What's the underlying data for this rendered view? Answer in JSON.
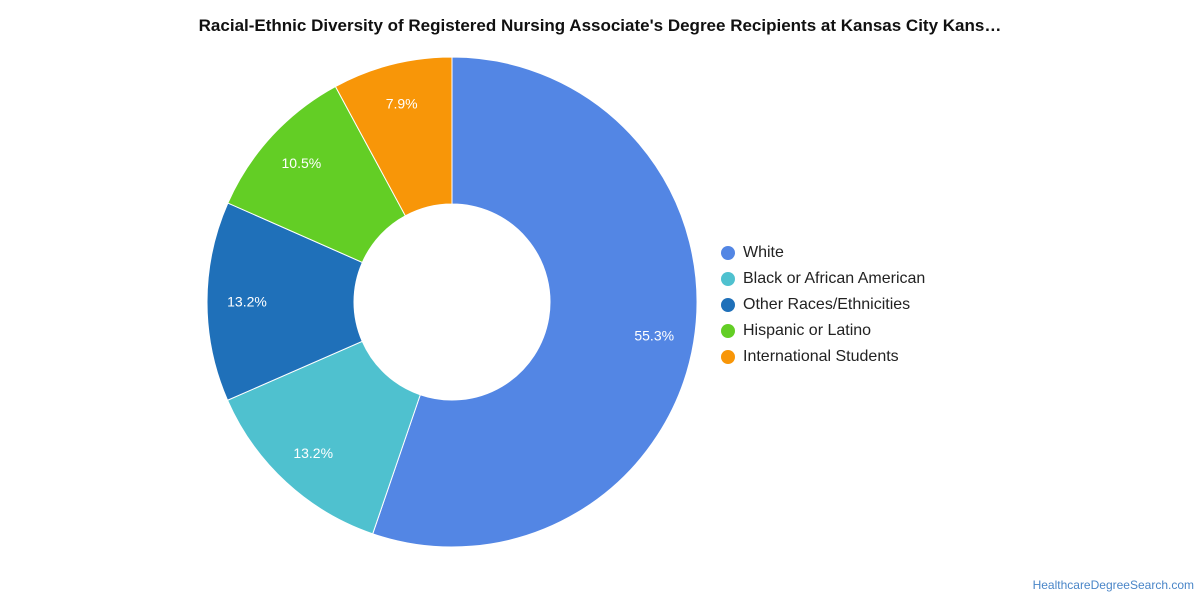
{
  "chart_data": {
    "type": "pie",
    "variant": "donut",
    "title": "Racial-Ethnic Diversity of Registered Nursing Associate's Degree Recipients at Kansas City Kans…",
    "slices": [
      {
        "name": "White",
        "value": 55.3,
        "label": "55.3%",
        "color": "#5386e4"
      },
      {
        "name": "Black or African American",
        "value": 13.2,
        "label": "13.2%",
        "color": "#4fc1cf"
      },
      {
        "name": "Other Races/Ethnicities",
        "value": 13.2,
        "label": "13.2%",
        "color": "#1f70b9"
      },
      {
        "name": "Hispanic or Latino",
        "value": 10.5,
        "label": "10.5%",
        "color": "#63ce25"
      },
      {
        "name": "International Students",
        "value": 7.9,
        "label": "7.9%",
        "color": "#f89608"
      }
    ],
    "legend_position": "right"
  },
  "credit": "HealthcareDegreeSearch.com"
}
